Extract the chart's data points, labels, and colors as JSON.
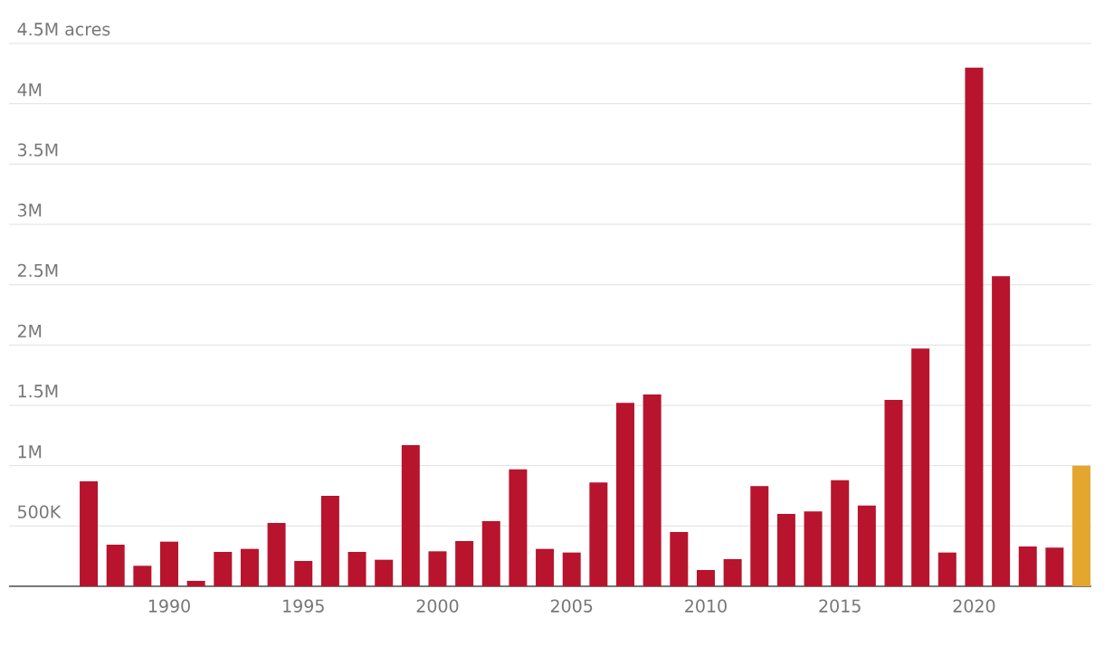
{
  "chart_data": {
    "type": "bar",
    "x": [
      1987,
      1988,
      1989,
      1990,
      1991,
      1992,
      1993,
      1994,
      1995,
      1996,
      1997,
      1998,
      1999,
      2000,
      2001,
      2002,
      2003,
      2004,
      2005,
      2006,
      2007,
      2008,
      2009,
      2010,
      2011,
      2012,
      2013,
      2014,
      2015,
      2016,
      2017,
      2018,
      2019,
      2020,
      2021,
      2022,
      2023,
      2024
    ],
    "values": [
      870000,
      345000,
      170000,
      370000,
      45000,
      285000,
      310000,
      525000,
      210000,
      750000,
      285000,
      220000,
      1170000,
      290000,
      375000,
      540000,
      970000,
      310000,
      280000,
      860000,
      1520000,
      1590000,
      450000,
      135000,
      225000,
      830000,
      600000,
      620000,
      880000,
      670000,
      1545000,
      1970000,
      280000,
      4300000,
      2570000,
      330000,
      320000,
      1000000
    ],
    "colors": [
      "#b8142d",
      "#b8142d",
      "#b8142d",
      "#b8142d",
      "#b8142d",
      "#b8142d",
      "#b8142d",
      "#b8142d",
      "#b8142d",
      "#b8142d",
      "#b8142d",
      "#b8142d",
      "#b8142d",
      "#b8142d",
      "#b8142d",
      "#b8142d",
      "#b8142d",
      "#b8142d",
      "#b8142d",
      "#b8142d",
      "#b8142d",
      "#b8142d",
      "#b8142d",
      "#b8142d",
      "#b8142d",
      "#b8142d",
      "#b8142d",
      "#b8142d",
      "#b8142d",
      "#b8142d",
      "#b8142d",
      "#b8142d",
      "#b8142d",
      "#b8142d",
      "#b8142d",
      "#b8142d",
      "#b8142d",
      "#e5a630"
    ],
    "xlim": [
      1984.03,
      2024.37
    ],
    "xticks": [
      1990,
      1995,
      2000,
      2005,
      2010,
      2015,
      2020
    ],
    "ylim": [
      0,
      4500000
    ],
    "yticks": [
      {
        "value": 0,
        "label": null
      },
      {
        "value": 500000,
        "label": "500K"
      },
      {
        "value": 1000000,
        "label": "1M"
      },
      {
        "value": 1500000,
        "label": "1.5M"
      },
      {
        "value": 2000000,
        "label": "2M"
      },
      {
        "value": 2500000,
        "label": "2.5M"
      },
      {
        "value": 3000000,
        "label": "3M"
      },
      {
        "value": 3500000,
        "label": "3.5M"
      },
      {
        "value": 4000000,
        "label": "4M"
      },
      {
        "value": 4500000,
        "label": "4.5M acres"
      }
    ],
    "grid": "y"
  }
}
